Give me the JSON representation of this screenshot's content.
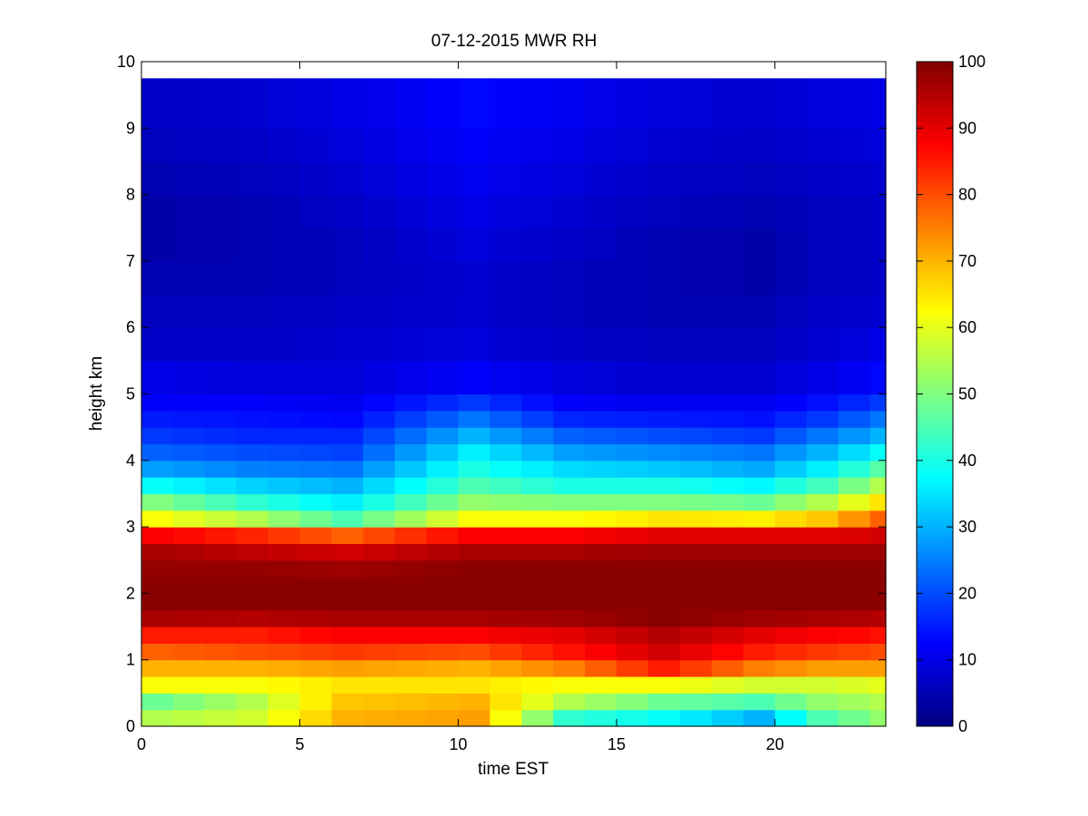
{
  "chart_data": {
    "type": "heatmap",
    "title": "07-12-2015 MWR RH",
    "xlabel": "time EST",
    "ylabel": "height km",
    "xlim": [
      0,
      23.5
    ],
    "ylim": [
      0,
      10
    ],
    "x_ticks": [
      "0",
      "5",
      "10",
      "15",
      "20"
    ],
    "y_ticks": [
      "0",
      "1",
      "2",
      "3",
      "4",
      "5",
      "6",
      "7",
      "8",
      "9",
      "10"
    ],
    "colorbar": {
      "min": 0,
      "max": 100,
      "ticks": [
        "0",
        "10",
        "20",
        "30",
        "40",
        "50",
        "60",
        "70",
        "80",
        "90",
        "100"
      ],
      "colormap": "jet"
    },
    "time_hours": [
      0,
      1,
      2,
      3,
      4,
      5,
      6,
      7,
      8,
      9,
      10,
      11,
      12,
      13,
      14,
      15,
      16,
      17,
      18,
      19,
      20,
      21,
      22,
      23
    ],
    "height_km": [
      0,
      0.25,
      0.5,
      0.75,
      1,
      1.25,
      1.5,
      1.75,
      2,
      2.25,
      2.5,
      2.75,
      3,
      3.25,
      3.5,
      3.75,
      4,
      4.25,
      4.5,
      4.75,
      5,
      5.5,
      6,
      6.5,
      7,
      7.5,
      8,
      8.5,
      9,
      9.75
    ],
    "rh_profile_keyframes": [
      {
        "hour": 0,
        "rh": [
          55,
          48,
          62,
          70,
          78,
          85,
          96,
          99,
          99,
          98,
          96,
          88,
          62,
          50,
          38,
          28,
          22,
          18,
          15,
          12,
          10,
          7,
          6,
          5,
          4,
          4,
          5,
          6,
          7,
          8
        ]
      },
      {
        "hour": 3,
        "rh": [
          58,
          55,
          62,
          70,
          80,
          85,
          95,
          99,
          99,
          98,
          94,
          84,
          55,
          42,
          33,
          25,
          20,
          16,
          14,
          12,
          9,
          7,
          6,
          5,
          5,
          5,
          6,
          7,
          8,
          9
        ]
      },
      {
        "hour": 6,
        "rh": [
          70,
          68,
          65,
          72,
          82,
          88,
          96,
          99,
          99,
          97,
          92,
          78,
          45,
          36,
          30,
          24,
          19,
          16,
          13,
          11,
          9,
          8,
          7,
          6,
          6,
          7,
          8,
          9,
          10,
          11
        ]
      },
      {
        "hour": 10,
        "rh": [
          72,
          70,
          65,
          70,
          80,
          88,
          96,
          99,
          99,
          99,
          96,
          88,
          62,
          52,
          45,
          40,
          36,
          30,
          24,
          18,
          12,
          9,
          8,
          8,
          9,
          10,
          11,
          12,
          13,
          14
        ]
      },
      {
        "hour": 13,
        "rh": [
          42,
          55,
          62,
          75,
          86,
          90,
          97,
          99,
          99,
          99,
          96,
          88,
          62,
          50,
          40,
          34,
          28,
          22,
          16,
          12,
          9,
          7,
          6,
          6,
          7,
          8,
          9,
          10,
          11,
          12
        ]
      },
      {
        "hour": 16,
        "rh": [
          38,
          48,
          62,
          85,
          92,
          95,
          99,
          99,
          99,
          99,
          97,
          90,
          65,
          50,
          40,
          32,
          26,
          20,
          15,
          11,
          8,
          6,
          5,
          5,
          5,
          6,
          7,
          8,
          9,
          10
        ]
      },
      {
        "hour": 19,
        "rh": [
          30,
          45,
          58,
          75,
          85,
          90,
          97,
          99,
          99,
          99,
          97,
          90,
          64,
          48,
          37,
          29,
          24,
          18,
          14,
          11,
          8,
          6,
          5,
          4,
          4,
          5,
          6,
          7,
          8,
          9
        ]
      },
      {
        "hour": 21,
        "rh": [
          45,
          52,
          58,
          72,
          82,
          88,
          96,
          99,
          99,
          99,
          97,
          90,
          68,
          55,
          44,
          36,
          30,
          24,
          18,
          14,
          10,
          8,
          7,
          6,
          6,
          6,
          7,
          8,
          9,
          10
        ]
      },
      {
        "hour": 23,
        "rh": [
          52,
          55,
          60,
          72,
          80,
          86,
          95,
          99,
          99,
          99,
          97,
          92,
          78,
          65,
          55,
          46,
          38,
          30,
          24,
          18,
          13,
          10,
          8,
          7,
          7,
          7,
          8,
          9,
          10,
          11
        ]
      }
    ]
  }
}
